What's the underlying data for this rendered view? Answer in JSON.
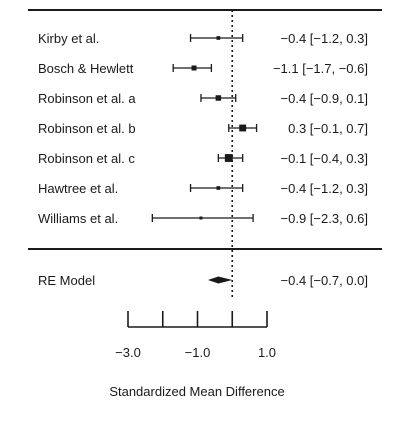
{
  "chart_data": {
    "type": "forest",
    "xlabel": "Standardized Mean Difference",
    "xlim": [
      -3.0,
      1.0
    ],
    "xticks": [
      -3.0,
      -2.0,
      -1.0,
      0.0,
      1.0
    ],
    "xtick_labels": [
      "−3.0",
      "",
      "−1.0",
      "",
      "1.0"
    ],
    "reference_line": 0,
    "studies": [
      {
        "label": "Kirby et al.",
        "estimate": -0.4,
        "lower": -1.2,
        "upper": 0.3,
        "ci_text": "−0.4 [−1.2,  0.3]"
      },
      {
        "label": "Bosch & Hewlett",
        "estimate": -1.1,
        "lower": -1.7,
        "upper": -0.6,
        "ci_text": "−1.1 [−1.7, −0.6]"
      },
      {
        "label": "Robinson et al. a",
        "estimate": -0.4,
        "lower": -0.9,
        "upper": 0.1,
        "ci_text": "−0.4 [−0.9,  0.1]"
      },
      {
        "label": "Robinson et al. b",
        "estimate": 0.3,
        "lower": -0.1,
        "upper": 0.7,
        "ci_text": "0.3 [−0.1,  0.7]"
      },
      {
        "label": "Robinson et al. c",
        "estimate": -0.1,
        "lower": -0.4,
        "upper": 0.3,
        "ci_text": "−0.1 [−0.4,  0.3]"
      },
      {
        "label": "Hawtree et al.",
        "estimate": -0.4,
        "lower": -1.2,
        "upper": 0.3,
        "ci_text": "−0.4 [−1.2,  0.3]"
      },
      {
        "label": "Williams et al.",
        "estimate": -0.9,
        "lower": -2.3,
        "upper": 0.6,
        "ci_text": "−0.9 [−2.3,  0.6]"
      }
    ],
    "summary": {
      "label": "RE Model",
      "estimate": -0.4,
      "lower": -0.7,
      "upper": 0.0,
      "ci_text": "−0.4 [−0.7,  0.0]"
    },
    "colors": {
      "ink": "#1a1a1a",
      "background": "#ffffff"
    }
  }
}
